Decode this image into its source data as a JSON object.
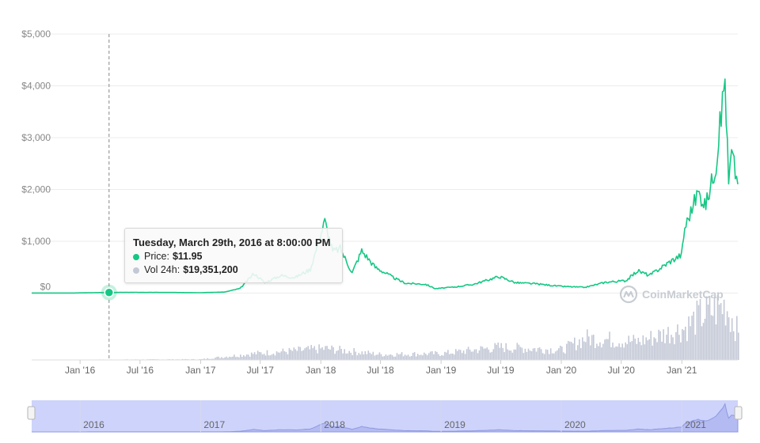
{
  "tooltip": {
    "title": "Tuesday, March 29th, 2016 at 8:00:00 PM",
    "price_label": "Price:",
    "price_value": "$11.95",
    "volume_label": "Vol 24h:",
    "volume_value": "$19,351,200"
  },
  "brand": {
    "name": "CoinMarketCap",
    "icon": "coinmarketcap-logo-icon"
  },
  "colors": {
    "price_line": "#16c784",
    "volume_bars": "#c3c8d6",
    "navigator_fill": "#cdd3fb",
    "crosshair": "#888888",
    "grid": "#ececec"
  },
  "chart_data": {
    "type": "line",
    "title": "",
    "y_axis": {
      "ticks": [
        "$5,000",
        "$4,000",
        "$3,000",
        "$2,000",
        "$1,000",
        "$0"
      ],
      "tick_values": [
        5000,
        4000,
        3000,
        2000,
        1000,
        0
      ],
      "ylim": [
        -50,
        5000
      ],
      "grid": true
    },
    "x_axis": {
      "ticks": [
        "Jan '16",
        "Jul '16",
        "Jan '17",
        "Jul '17",
        "Jan '18",
        "Jul '18",
        "Jan '19",
        "Jul '19",
        "Jan '20",
        "Jul '20",
        "Jan '21"
      ],
      "tick_dates": [
        "2016-01-01",
        "2016-07-01",
        "2017-01-01",
        "2017-07-01",
        "2018-01-01",
        "2018-07-01",
        "2019-01-01",
        "2019-07-01",
        "2020-01-01",
        "2020-07-01",
        "2021-01-01"
      ],
      "range": [
        "2015-08-07",
        "2021-06-20"
      ]
    },
    "navigator": {
      "labels": [
        "2016",
        "2017",
        "2018",
        "2019",
        "2020",
        "2021"
      ]
    },
    "highlight": {
      "date": "2016-03-29",
      "price": 11.95,
      "volume": 19351200
    },
    "series": [
      {
        "name": "Price",
        "x": [
          "2015-08-07",
          "2015-12-01",
          "2016-03-29",
          "2016-06-15",
          "2016-10-01",
          "2017-01-01",
          "2017-03-15",
          "2017-05-01",
          "2017-06-12",
          "2017-07-15",
          "2017-09-01",
          "2017-10-15",
          "2017-11-30",
          "2018-01-13",
          "2018-02-06",
          "2018-03-01",
          "2018-04-06",
          "2018-05-05",
          "2018-06-15",
          "2018-08-15",
          "2018-09-15",
          "2018-11-15",
          "2018-12-15",
          "2019-02-15",
          "2019-04-10",
          "2019-06-26",
          "2019-08-15",
          "2019-10-15",
          "2019-12-31",
          "2020-03-13",
          "2020-05-15",
          "2020-07-15",
          "2020-08-20",
          "2020-09-25",
          "2020-11-24",
          "2020-12-31",
          "2021-01-10",
          "2021-02-19",
          "2021-03-15",
          "2021-04-15",
          "2021-05-12",
          "2021-05-23",
          "2021-06-01",
          "2021-06-20"
        ],
        "values": [
          2,
          1,
          12,
          14,
          12,
          8,
          20,
          90,
          380,
          200,
          340,
          300,
          460,
          1390,
          800,
          860,
          390,
          820,
          500,
          280,
          190,
          170,
          85,
          120,
          170,
          320,
          200,
          180,
          130,
          110,
          210,
          240,
          430,
          340,
          600,
          740,
          1260,
          1950,
          1700,
          2500,
          4170,
          2100,
          2700,
          2100
        ]
      },
      {
        "name": "Vol 24h",
        "x": [
          "2015-08-07",
          "2017-01-01",
          "2017-06-12",
          "2018-01-13",
          "2018-07-01",
          "2019-01-01",
          "2019-06-26",
          "2020-01-01",
          "2020-03-13",
          "2020-08-20",
          "2021-01-10",
          "2021-02-19",
          "2021-05-12",
          "2021-06-20"
        ],
        "values": [
          0.2,
          1.5,
          14,
          25,
          12,
          14,
          28,
          22,
          48,
          40,
          70,
          95,
          120,
          60
        ],
        "unit": "relative"
      }
    ]
  }
}
